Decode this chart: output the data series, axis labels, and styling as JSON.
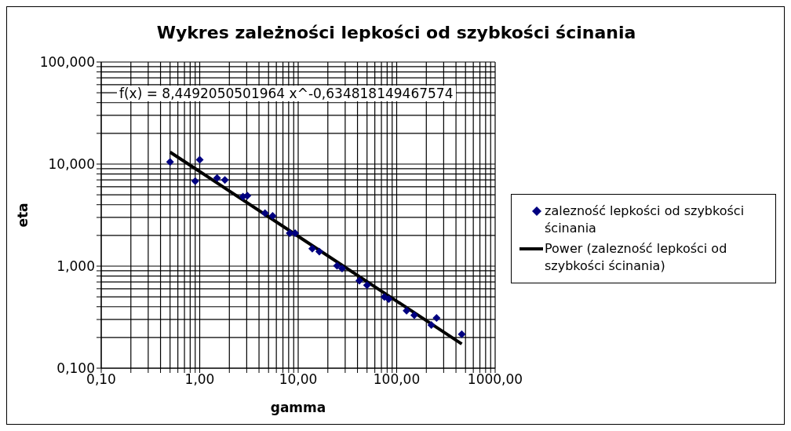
{
  "chart_data": {
    "type": "scatter",
    "title": "Wykres zależności lepkości od szybkości ścinania",
    "xlabel": "gamma",
    "ylabel": "eta",
    "log": "xy",
    "grid": true,
    "legend": "right",
    "annotations": [
      "f(x) = 8,4492050501964 x^-0,634818149467574"
    ],
    "xlim": [
      0.1,
      1000
    ],
    "ylim": [
      0.1,
      100
    ],
    "xticks": [
      {
        "value": 0.1,
        "label": "0,10"
      },
      {
        "value": 0.2,
        "label": null
      },
      {
        "value": 0.3,
        "label": null
      },
      {
        "value": 0.4,
        "label": null
      },
      {
        "value": 0.5,
        "label": null
      },
      {
        "value": 0.6,
        "label": null
      },
      {
        "value": 0.7,
        "label": null
      },
      {
        "value": 0.8,
        "label": null
      },
      {
        "value": 0.9,
        "label": null
      },
      {
        "value": 1,
        "label": "1,00"
      },
      {
        "value": 2,
        "label": null
      },
      {
        "value": 3,
        "label": null
      },
      {
        "value": 4,
        "label": null
      },
      {
        "value": 5,
        "label": null
      },
      {
        "value": 6,
        "label": null
      },
      {
        "value": 7,
        "label": null
      },
      {
        "value": 8,
        "label": null
      },
      {
        "value": 9,
        "label": null
      },
      {
        "value": 10,
        "label": "10,00"
      },
      {
        "value": 20,
        "label": null
      },
      {
        "value": 30,
        "label": null
      },
      {
        "value": 40,
        "label": null
      },
      {
        "value": 50,
        "label": null
      },
      {
        "value": 60,
        "label": null
      },
      {
        "value": 70,
        "label": null
      },
      {
        "value": 80,
        "label": null
      },
      {
        "value": 90,
        "label": null
      },
      {
        "value": 100,
        "label": "100,00"
      },
      {
        "value": 200,
        "label": null
      },
      {
        "value": 300,
        "label": null
      },
      {
        "value": 400,
        "label": null
      },
      {
        "value": 500,
        "label": null
      },
      {
        "value": 600,
        "label": null
      },
      {
        "value": 700,
        "label": null
      },
      {
        "value": 800,
        "label": null
      },
      {
        "value": 900,
        "label": null
      },
      {
        "value": 1000,
        "label": "1000,00"
      }
    ],
    "yticks": [
      {
        "value": 0.1,
        "label": "0,100"
      },
      {
        "value": 0.2,
        "label": null
      },
      {
        "value": 0.3,
        "label": null
      },
      {
        "value": 0.4,
        "label": null
      },
      {
        "value": 0.5,
        "label": null
      },
      {
        "value": 0.6,
        "label": null
      },
      {
        "value": 0.7,
        "label": null
      },
      {
        "value": 0.8,
        "label": null
      },
      {
        "value": 0.9,
        "label": null
      },
      {
        "value": 1,
        "label": "1,000"
      },
      {
        "value": 2,
        "label": null
      },
      {
        "value": 3,
        "label": null
      },
      {
        "value": 4,
        "label": null
      },
      {
        "value": 5,
        "label": null
      },
      {
        "value": 6,
        "label": null
      },
      {
        "value": 7,
        "label": null
      },
      {
        "value": 8,
        "label": null
      },
      {
        "value": 9,
        "label": null
      },
      {
        "value": 10,
        "label": "10,000"
      },
      {
        "value": 20,
        "label": null
      },
      {
        "value": 30,
        "label": null
      },
      {
        "value": 40,
        "label": null
      },
      {
        "value": 50,
        "label": null
      },
      {
        "value": 60,
        "label": null
      },
      {
        "value": 70,
        "label": null
      },
      {
        "value": 80,
        "label": null
      },
      {
        "value": 90,
        "label": null
      },
      {
        "value": 100,
        "label": "100,000"
      }
    ],
    "series": [
      {
        "name": "zalezność lepkości od szybkości ścinania",
        "type": "scatter",
        "marker": "diamond",
        "color": "#000080",
        "x": [
          0.5,
          0.9,
          1.0,
          1.5,
          1.8,
          2.75,
          3.05,
          4.6,
          5.5,
          8.2,
          9.3,
          13.9,
          16.4,
          24.8,
          27.9,
          41.8,
          50,
          75,
          83,
          126,
          151,
          225,
          254,
          458
        ],
        "values": [
          10.5,
          6.8,
          11.0,
          7.3,
          7.0,
          4.8,
          4.9,
          3.3,
          3.1,
          2.1,
          2.1,
          1.48,
          1.39,
          1.01,
          0.95,
          0.72,
          0.65,
          0.5,
          0.475,
          0.366,
          0.33,
          0.265,
          0.31,
          0.215
        ]
      },
      {
        "name": "Power (zalezność lepkości od szybkości ścinania)",
        "type": "line",
        "marker": "none",
        "line_style": "solid",
        "color": "#000000",
        "x": [
          0.5,
          1,
          10,
          100,
          458
        ],
        "values": [
          13.1,
          8.45,
          1.96,
          0.454,
          0.173
        ]
      }
    ]
  }
}
